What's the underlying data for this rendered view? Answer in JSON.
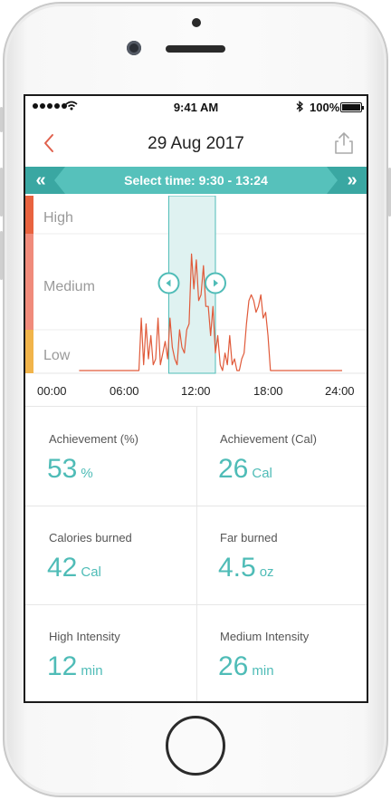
{
  "status_bar": {
    "time": "9:41 AM",
    "battery": "100%",
    "icons": [
      "signal-dots-icon",
      "wifi-icon",
      "bluetooth-icon",
      "battery-icon"
    ]
  },
  "header": {
    "title": "29 Aug 2017",
    "back_icon": "chevron-left-icon",
    "share_icon": "share-icon"
  },
  "time_selector": {
    "label": "Select time: 9:30 - 13:24",
    "prev_icon": "double-chevron-left-icon",
    "next_icon": "double-chevron-right-icon"
  },
  "chart": {
    "levels": [
      "High",
      "Medium",
      "Low"
    ],
    "x_ticks": [
      "00:00",
      "06:00",
      "12:00",
      "18:00",
      "24:00"
    ]
  },
  "chart_data": {
    "type": "line",
    "x_ticks": [
      "00:00",
      "06:00",
      "12:00",
      "18:00",
      "24:00"
    ],
    "y_levels": [
      "Low",
      "Medium",
      "High"
    ],
    "selection": {
      "start": "9:30",
      "end": "13:24"
    },
    "series": [
      {
        "x": [
          2.0,
          7.0,
          7.2,
          7.4,
          7.6,
          7.8,
          8.0,
          8.2,
          8.4,
          8.6,
          8.8,
          9.0,
          9.2,
          9.4,
          9.6,
          9.8,
          10.0,
          10.2,
          10.4,
          10.6,
          10.8,
          11.0,
          11.2,
          11.4,
          11.6,
          11.8,
          12.0,
          12.2,
          12.4,
          12.6,
          12.8,
          13.0,
          13.2,
          13.4,
          13.6,
          13.8,
          14.0,
          14.2,
          14.4,
          14.6,
          14.8,
          15.0,
          15.2,
          15.4,
          15.6,
          15.8,
          16.0,
          16.2,
          16.4,
          16.6,
          16.8,
          17.0,
          17.2,
          17.4,
          17.6,
          17.8,
          18.0,
          24.0
        ],
        "y": [
          0.0,
          0.0,
          0.9,
          0.1,
          0.8,
          0.2,
          0.6,
          0.1,
          0.2,
          0.9,
          0.1,
          0.3,
          0.5,
          0.2,
          0.9,
          0.4,
          0.2,
          0.1,
          0.7,
          0.4,
          0.3,
          0.7,
          0.8,
          2.0,
          1.4,
          1.9,
          1.2,
          1.3,
          1.8,
          1.1,
          1.1,
          0.6,
          1.1,
          0.3,
          0.6,
          0.1,
          0.0,
          0.3,
          0.1,
          0.6,
          0.1,
          0.2,
          0.0,
          0.0,
          0.2,
          0.3,
          0.8,
          1.2,
          1.3,
          1.2,
          1.0,
          1.1,
          1.3,
          0.9,
          1.0,
          0.6,
          0.0,
          0.0
        ]
      }
    ]
  },
  "stats": [
    {
      "label": "Achievement (%)",
      "value": "53",
      "unit": "%"
    },
    {
      "label": "Achievement (Cal)",
      "value": "26",
      "unit": "Cal"
    },
    {
      "label": "Calories burned",
      "value": "42",
      "unit": "Cal"
    },
    {
      "label": "Far burned",
      "value": "4.5",
      "unit": "oz"
    },
    {
      "label": "High Intensity",
      "value": "12",
      "unit": "min"
    },
    {
      "label": "Medium Intensity",
      "value": "26",
      "unit": "min"
    }
  ],
  "colors": {
    "accent": "#4fbcb7",
    "selection_fill": "#dff2f1",
    "high": "#e8633f",
    "medium": "#f08b7b",
    "low": "#f1b44a",
    "line": "#e05a3a",
    "back_arrow": "#e0604c"
  }
}
